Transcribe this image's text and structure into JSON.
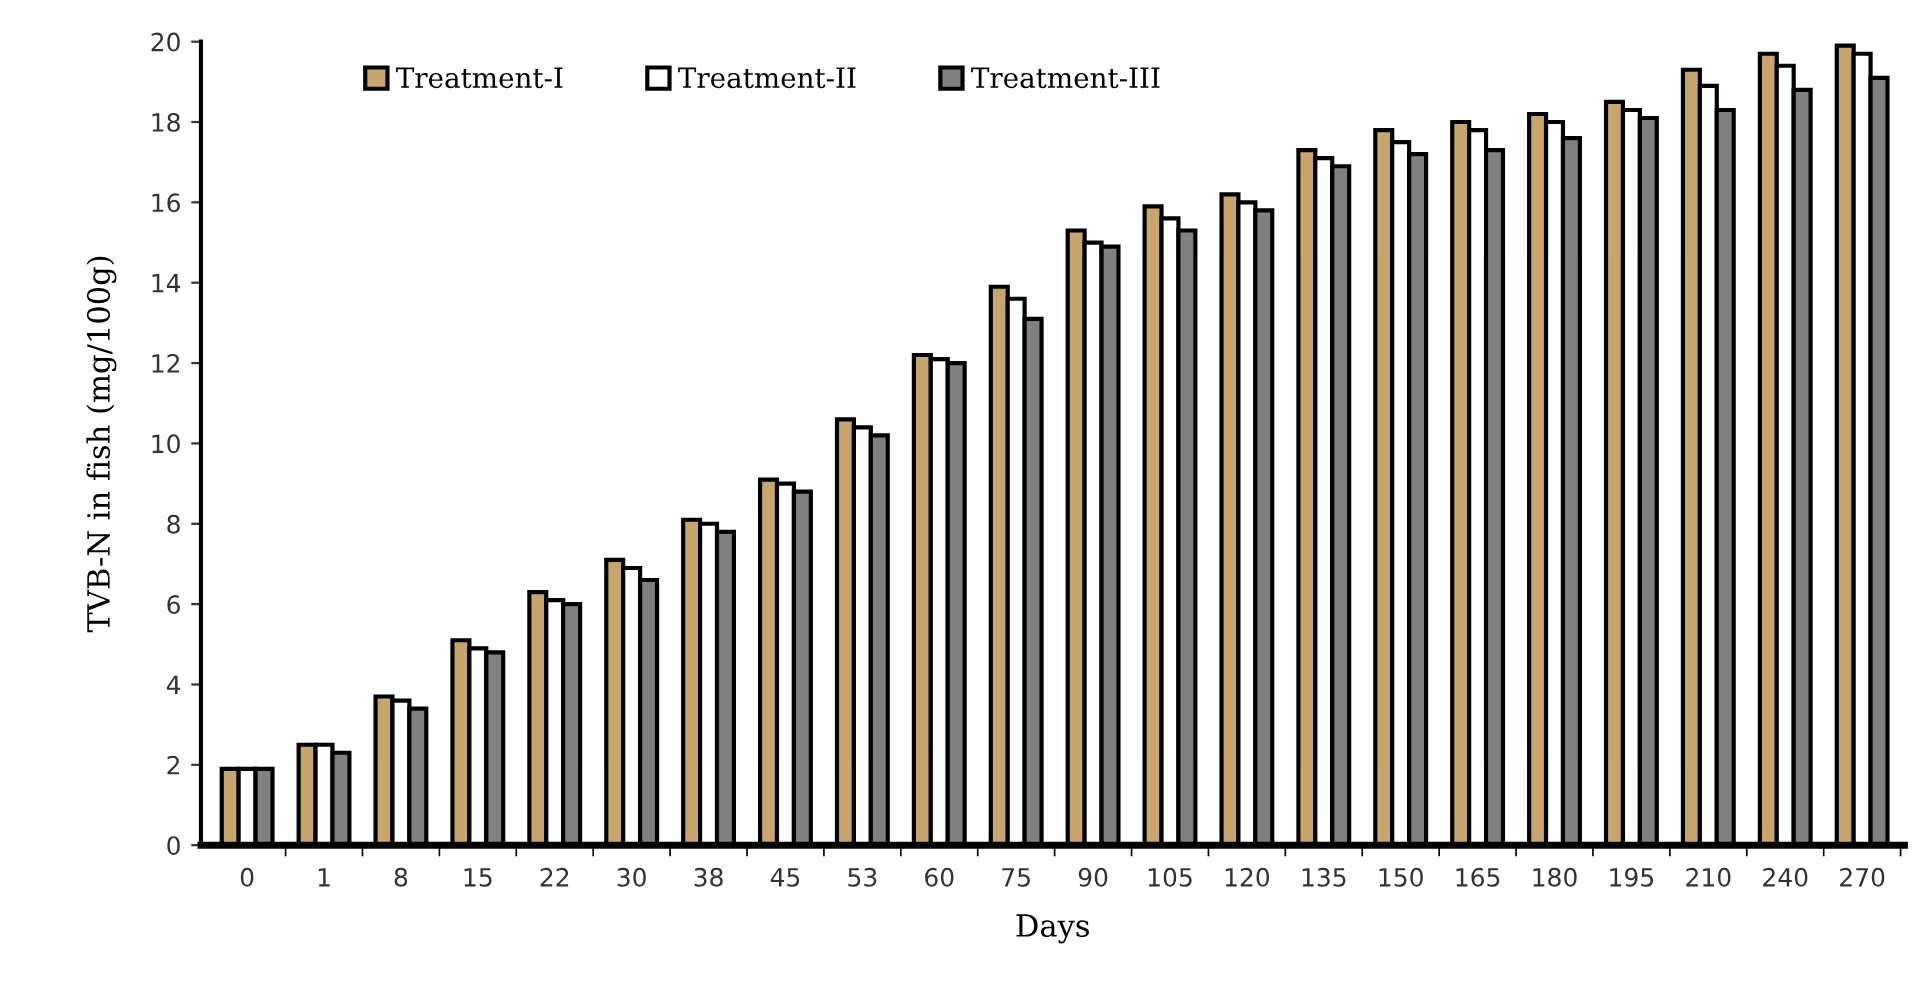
{
  "chart_data": {
    "type": "bar",
    "xlabel": "Days",
    "ylabel": "TVB-N in fish (mg/100g)",
    "categories": [
      "0",
      "1",
      "8",
      "15",
      "22",
      "30",
      "38",
      "45",
      "53",
      "60",
      "75",
      "90",
      "105",
      "120",
      "135",
      "150",
      "165",
      "180",
      "195",
      "210",
      "240",
      "270"
    ],
    "series": [
      {
        "name": "Treatment-I",
        "color": "#c8a56a",
        "values": [
          1.9,
          2.5,
          3.7,
          5.1,
          6.3,
          7.1,
          8.1,
          9.1,
          10.6,
          12.2,
          13.9,
          15.3,
          15.9,
          16.2,
          17.3,
          17.8,
          18.0,
          18.2,
          18.5,
          19.3,
          19.7,
          19.9
        ]
      },
      {
        "name": "Treatment-II",
        "color": "#ffffff",
        "values": [
          1.9,
          2.5,
          3.6,
          4.9,
          6.1,
          6.9,
          8.0,
          9.0,
          10.4,
          12.1,
          13.6,
          15.0,
          15.6,
          16.0,
          17.1,
          17.5,
          17.8,
          18.0,
          18.3,
          18.9,
          19.4,
          19.7
        ]
      },
      {
        "name": "Treatment-III",
        "color": "#808080",
        "values": [
          1.9,
          2.3,
          3.4,
          4.8,
          6.0,
          6.6,
          7.8,
          8.8,
          10.2,
          12.0,
          13.1,
          14.9,
          15.3,
          15.8,
          16.9,
          17.2,
          17.3,
          17.6,
          18.1,
          18.3,
          18.8,
          19.1
        ]
      }
    ],
    "ylim": [
      0,
      20
    ],
    "yticks": [
      0,
      2,
      4,
      6,
      8,
      10,
      12,
      14,
      16,
      18,
      20
    ],
    "grid": false,
    "legend": "top"
  }
}
